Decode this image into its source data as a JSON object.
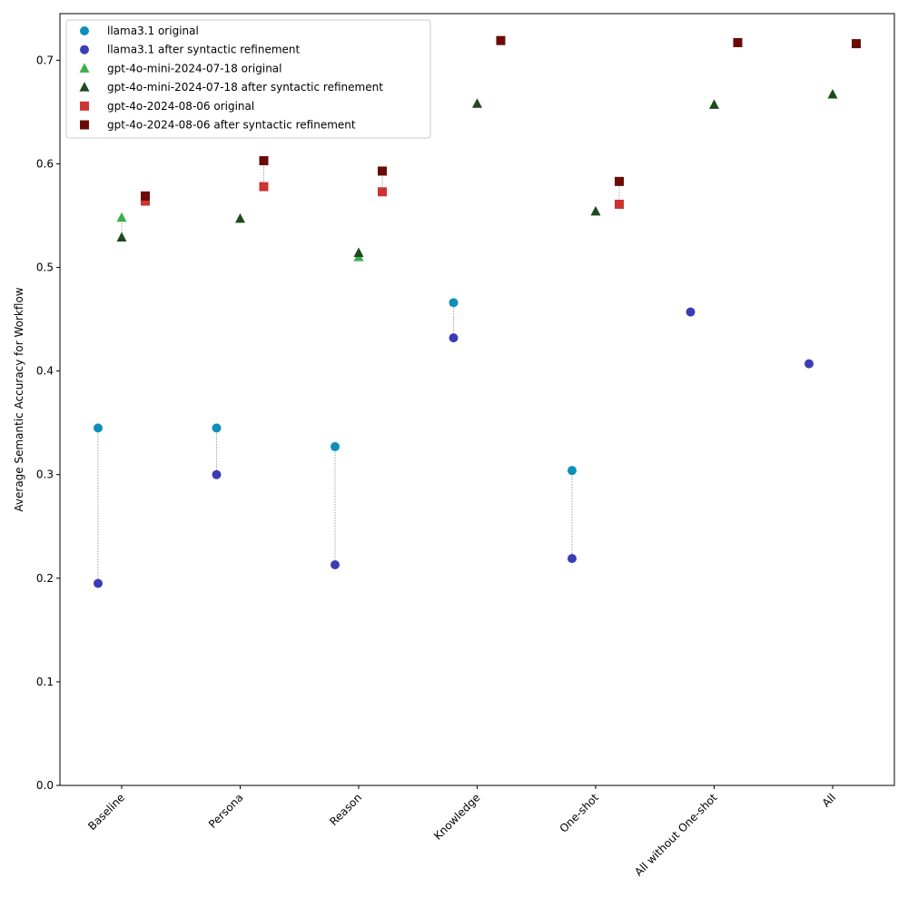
{
  "chart_data": {
    "type": "scatter",
    "title": "",
    "xlabel": "",
    "ylabel": "Average Semantic Accuracy for Workflow",
    "ylim": [
      0,
      0.745
    ],
    "yticks": [
      0.0,
      0.1,
      0.2,
      0.3,
      0.4,
      0.5,
      0.6,
      0.7
    ],
    "ytick_labels": [
      "0.0",
      "0.1",
      "0.2",
      "0.3",
      "0.4",
      "0.5",
      "0.6",
      "0.7"
    ],
    "categories": [
      "Baseline",
      "Persona",
      "Reason",
      "Knowledge",
      "One-shot",
      "All without One-shot",
      "All"
    ],
    "legend_position": "top-left",
    "series": [
      {
        "name": "llama3.1 original",
        "marker": "circle",
        "color": "#0e8fba",
        "offset": -1,
        "values": [
          0.345,
          0.345,
          0.327,
          0.466,
          0.304,
          null,
          null
        ]
      },
      {
        "name": "llama3.1 after syntactic refinement",
        "marker": "circle",
        "color": "#3b3cb5",
        "offset": -1,
        "values": [
          0.195,
          0.3,
          0.213,
          0.432,
          0.219,
          0.457,
          0.407
        ]
      },
      {
        "name": "gpt-4o-mini-2024-07-18 original",
        "marker": "triangle",
        "color": "#3daf4a",
        "offset": 0,
        "values": [
          0.548,
          null,
          0.51,
          null,
          null,
          null,
          null
        ]
      },
      {
        "name": "gpt-4o-mini-2024-07-18 after syntactic refinement",
        "marker": "triangle",
        "color": "#1e4a1d",
        "offset": 0,
        "values": [
          0.529,
          0.547,
          0.514,
          0.658,
          0.554,
          0.657,
          0.667
        ]
      },
      {
        "name": "gpt-4o-2024-08-06 original",
        "marker": "square",
        "color": "#cc3333",
        "offset": 1,
        "values": [
          0.564,
          0.578,
          0.573,
          null,
          0.561,
          null,
          null
        ]
      },
      {
        "name": "gpt-4o-2024-08-06 after syntactic refinement",
        "marker": "square",
        "color": "#6b0b05",
        "offset": 1,
        "values": [
          0.569,
          0.603,
          0.593,
          0.719,
          0.583,
          0.717,
          0.716
        ]
      }
    ],
    "connectors": [
      {
        "from": "llama3.1 original",
        "to": "llama3.1 after syntactic refinement"
      },
      {
        "from": "gpt-4o-mini-2024-07-18 original",
        "to": "gpt-4o-mini-2024-07-18 after syntactic refinement"
      },
      {
        "from": "gpt-4o-2024-08-06 original",
        "to": "gpt-4o-2024-08-06 after syntactic refinement"
      }
    ]
  }
}
